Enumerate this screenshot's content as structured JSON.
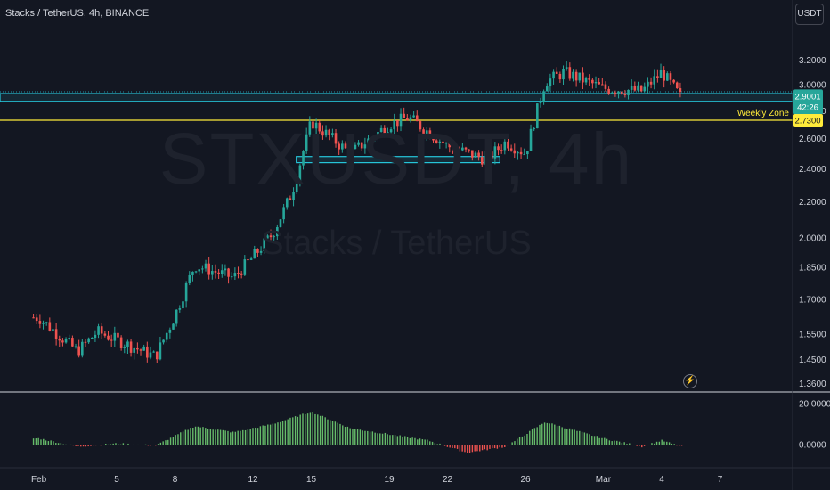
{
  "header": {
    "symbol": "Stacks / TetherUS",
    "interval": "4h",
    "exchange": "BINANCE",
    "title_sep": ", "
  },
  "currency_button": "USDT",
  "watermark": {
    "ticker": "STXUSDT, 4h",
    "name": "Stacks / TetherUS"
  },
  "price_labels": {
    "current_price": "2.9001",
    "countdown": "42:26",
    "weekly_zone_price": "2.7300",
    "weekly_zone_text": "Weekly Zone"
  },
  "colors": {
    "background": "#131722",
    "up": "#26a69a",
    "down": "#ef5350",
    "osc_up": "#66bb6a",
    "osc_down": "#ef5350",
    "zone_line": "#26c6da",
    "weekly_zone": "#ffeb3b",
    "axis_text": "#d1d4dc"
  },
  "chart_data": [
    {
      "type": "candlestick",
      "title": "Stacks / TetherUS, 4h, BINANCE",
      "y_scale": "log",
      "y_ticks": [
        "3.2000",
        "3.0000",
        "2.8000",
        "2.6000",
        "2.4000",
        "2.2000",
        "2.0000",
        "1.8500",
        "1.7000",
        "1.5500",
        "1.4500",
        "1.3600"
      ],
      "x_ticks": [
        "Feb",
        "5",
        "8",
        "12",
        "15",
        "19",
        "22",
        "26",
        "Mar",
        "4",
        "7"
      ],
      "ylim": [
        1.33,
        3.55
      ],
      "key_points": [
        {
          "x": "Feb 1",
          "close": 1.62
        },
        {
          "x": "Feb 3",
          "close": 1.48
        },
        {
          "x": "Feb 4",
          "close": 1.56
        },
        {
          "x": "Feb 7",
          "close": 1.46
        },
        {
          "x": "Feb 8",
          "close": 1.63
        },
        {
          "x": "Feb 9",
          "close": 1.86
        },
        {
          "x": "Feb 11",
          "close": 1.8
        },
        {
          "x": "Feb 12",
          "close": 1.9
        },
        {
          "x": "Feb 13",
          "close": 2.02
        },
        {
          "x": "Feb 14",
          "close": 2.25
        },
        {
          "x": "Feb 15",
          "close": 2.72
        },
        {
          "x": "Feb 17",
          "close": 2.5
        },
        {
          "x": "Feb 19",
          "close": 2.7
        },
        {
          "x": "Feb 20",
          "close": 2.75
        },
        {
          "x": "Feb 22",
          "close": 2.55
        },
        {
          "x": "Feb 24",
          "close": 2.46
        },
        {
          "x": "Feb 25",
          "close": 2.58
        },
        {
          "x": "Feb 26",
          "close": 2.5
        },
        {
          "x": "Feb 27",
          "close": 3.02
        },
        {
          "x": "Feb 28",
          "close": 3.1
        },
        {
          "x": "Mar 1",
          "close": 2.97
        },
        {
          "x": "Mar 3",
          "close": 2.95
        },
        {
          "x": "Mar 4",
          "close": 3.1
        },
        {
          "x": "Mar 5",
          "close": 2.9
        }
      ],
      "horizontal_levels": [
        {
          "label": "zone_top",
          "value": 2.93
        },
        {
          "label": "zone_bottom",
          "value": 2.87
        },
        {
          "label": "Weekly Zone",
          "value": 2.73
        }
      ],
      "support_box": {
        "x_start": "Feb 14",
        "x_end": "Feb 24",
        "top": 2.48,
        "bottom": 2.44
      }
    },
    {
      "type": "bar",
      "title": "",
      "y_ticks": [
        "20.0000",
        "0.0000"
      ],
      "ylim": [
        -6,
        25
      ],
      "series_profile": [
        {
          "x": "Feb 1",
          "value": 3
        },
        {
          "x": "Feb 3",
          "value": -1
        },
        {
          "x": "Feb 5",
          "value": 0.5
        },
        {
          "x": "Feb 7",
          "value": -0.5
        },
        {
          "x": "Feb 9",
          "value": 9
        },
        {
          "x": "Feb 11",
          "value": 6
        },
        {
          "x": "Feb 13",
          "value": 10
        },
        {
          "x": "Feb 15",
          "value": 16
        },
        {
          "x": "Feb 17",
          "value": 8
        },
        {
          "x": "Feb 19",
          "value": 5
        },
        {
          "x": "Feb 21",
          "value": 2
        },
        {
          "x": "Feb 23",
          "value": -4
        },
        {
          "x": "Feb 25",
          "value": -1
        },
        {
          "x": "Feb 27",
          "value": 11
        },
        {
          "x": "Mar 1",
          "value": 3
        },
        {
          "x": "Mar 3",
          "value": -1
        },
        {
          "x": "Mar 4",
          "value": 2
        },
        {
          "x": "Mar 5",
          "value": -1
        }
      ]
    }
  ]
}
